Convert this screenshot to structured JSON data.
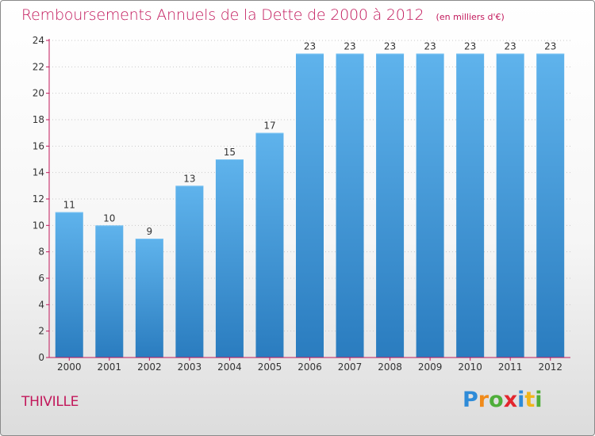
{
  "header": {
    "title": "Remboursements Annuels de la Dette de 2000 à 2012",
    "subtitle": "(en milliers d'€)"
  },
  "footer": {
    "commune": "THIVILLE",
    "logo_text": "Proxiti"
  },
  "colors": {
    "title": "#c2185b",
    "bar_top": "#5fb3ec",
    "bar_bottom": "#2a7cbf",
    "axis": "#c2185b",
    "grid": "#c9c9c9"
  },
  "chart_data": {
    "type": "bar",
    "title": "Remboursements Annuels de la Dette de 2000 à 2012",
    "subtitle": "(en milliers d'€)",
    "categories": [
      "2000",
      "2001",
      "2002",
      "2003",
      "2004",
      "2005",
      "2006",
      "2007",
      "2008",
      "2009",
      "2010",
      "2011",
      "2012"
    ],
    "values": [
      11,
      10,
      9,
      13,
      15,
      17,
      23,
      23,
      23,
      23,
      23,
      23,
      23
    ],
    "ylim": [
      0,
      24
    ],
    "yticks": [
      0,
      2,
      4,
      6,
      8,
      10,
      12,
      14,
      16,
      18,
      20,
      22,
      24
    ],
    "grid": true,
    "data_labels": true
  }
}
